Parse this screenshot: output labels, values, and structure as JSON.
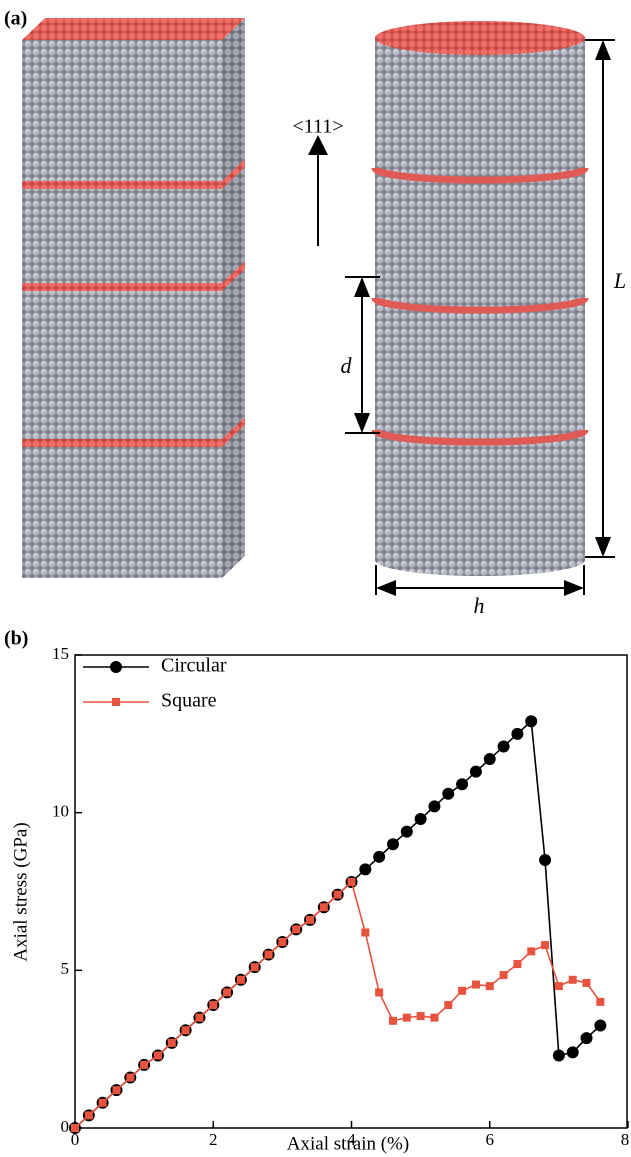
{
  "panel_a": {
    "label": "(a)",
    "orientation": "<111>",
    "length_label": "L",
    "spacing_label": "d",
    "diameter_label": "h"
  },
  "chart_data": {
    "type": "line",
    "panel_label": "(b)",
    "x_label": "Axial strain (%)",
    "y_label": "Axial stress (GPa)",
    "x": [
      0,
      0.2,
      0.4,
      0.6,
      0.8,
      1.0,
      1.2,
      1.4,
      1.6,
      1.8,
      2.0,
      2.2,
      2.4,
      2.6,
      2.8,
      3.0,
      3.2,
      3.4,
      3.6,
      3.8,
      4.0,
      4.2,
      4.4,
      4.6,
      4.8,
      5.0,
      5.2,
      5.4,
      5.6,
      5.8,
      6.0,
      6.2,
      6.4,
      6.6,
      6.8,
      7.0,
      7.2,
      7.4,
      7.6
    ],
    "series": [
      {
        "name": "Circular",
        "color": "#000000",
        "marker": "circle",
        "values": [
          0,
          0.4,
          0.8,
          1.2,
          1.6,
          2.0,
          2.3,
          2.7,
          3.1,
          3.5,
          3.9,
          4.3,
          4.7,
          5.1,
          5.5,
          5.9,
          6.3,
          6.6,
          7.0,
          7.4,
          7.8,
          8.2,
          8.6,
          9.0,
          9.4,
          9.8,
          10.2,
          10.6,
          10.9,
          11.3,
          11.7,
          12.1,
          12.5,
          12.9,
          8.5,
          2.3,
          2.4,
          2.85,
          3.25
        ]
      },
      {
        "name": "Square",
        "color": "#e8533f",
        "marker": "square",
        "values": [
          0,
          0.4,
          0.8,
          1.2,
          1.6,
          2.0,
          2.3,
          2.7,
          3.1,
          3.5,
          3.9,
          4.3,
          4.7,
          5.1,
          5.5,
          5.9,
          6.3,
          6.6,
          7.0,
          7.4,
          7.8,
          6.2,
          4.3,
          3.4,
          3.5,
          3.55,
          3.5,
          3.9,
          4.35,
          4.55,
          4.5,
          4.85,
          5.2,
          5.6,
          5.8,
          4.5,
          4.7,
          4.6,
          4.0
        ]
      }
    ],
    "xlim": [
      0,
      8
    ],
    "xticks": [
      0,
      2,
      4,
      6,
      8
    ],
    "ylim": [
      0,
      15
    ],
    "yticks": [
      0,
      5,
      10,
      15
    ],
    "grid": false,
    "legend": "upper left"
  }
}
